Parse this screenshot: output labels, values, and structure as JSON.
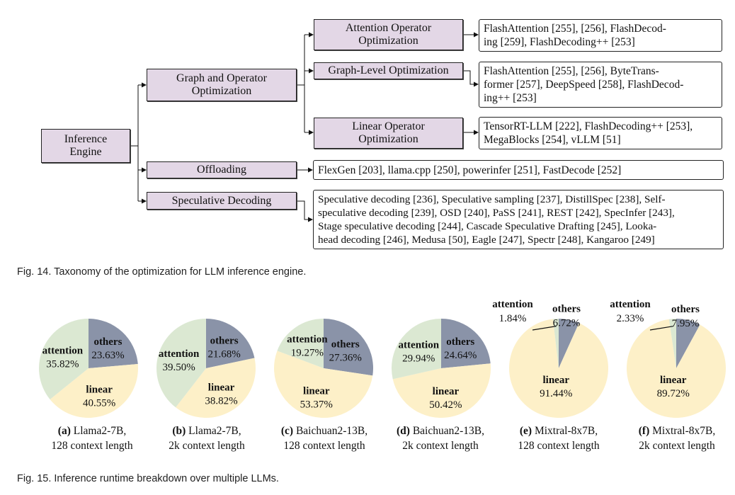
{
  "taxonomy": {
    "root": "Inference Engine",
    "branches": [
      {
        "label": "Graph and Operator Optimization"
      },
      {
        "label": "Offloading"
      },
      {
        "label": "Speculative Decoding"
      }
    ],
    "sub_branches": [
      {
        "label": "Attention Operator Optimization"
      },
      {
        "label": "Graph-Level Optimization"
      },
      {
        "label": "Linear Operator Optimization"
      }
    ],
    "leaves": {
      "attention_op": [
        "FlashAttention [255], [256], FlashDecod-",
        "ing [259], FlashDecoding++ [253]"
      ],
      "graph_level": [
        "FlashAttention [255], [256], ByteTrans-",
        "former [257], DeepSpeed [258], FlashDecod-",
        "ing++ [253]"
      ],
      "linear_op": [
        "TensorRT-LLM [222], FlashDecoding++ [253],",
        "MegaBlocks [254], vLLM [51]"
      ],
      "offloading": [
        "FlexGen [203], llama.cpp [250], powerinfer [251], FastDecode [252]"
      ],
      "speculative": [
        "Speculative decoding [236], Speculative sampling [237], DistillSpec [238], Self-",
        "speculative decoding [239], OSD [240], PaSS [241], REST [242], SpecInfer [243],",
        "Stage speculative decoding [244], Cascade Speculative Drafting [245], Looka-",
        "head decoding [246], Medusa [50], Eagle [247], Spectr [248], Kangaroo [249]"
      ]
    }
  },
  "fig14_caption": "Fig. 14. Taxonomy of the optimization for LLM inference engine.",
  "fig15_caption": "Fig. 15. Inference runtime breakdown over multiple LLMs.",
  "colors": {
    "others": "#8a93a8",
    "linear": "#fdf0c8",
    "attention": "#dbe8d2",
    "node_fill": "#e3d7e6"
  },
  "chart_data": [
    {
      "type": "pie",
      "caption_tag": "(a)",
      "caption_line1": "Llama2-7B,",
      "caption_line2": "128 context length",
      "slices": [
        {
          "name": "others",
          "value": 23.63,
          "label": "23.63%"
        },
        {
          "name": "linear",
          "value": 40.55,
          "label": "40.55%"
        },
        {
          "name": "attention",
          "value": 35.82,
          "label": "35.82%"
        }
      ]
    },
    {
      "type": "pie",
      "caption_tag": "(b)",
      "caption_line1": "Llama2-7B,",
      "caption_line2": "2k context length",
      "slices": [
        {
          "name": "others",
          "value": 21.68,
          "label": "21.68%"
        },
        {
          "name": "linear",
          "value": 38.82,
          "label": "38.82%"
        },
        {
          "name": "attention",
          "value": 39.5,
          "label": "39.50%"
        }
      ]
    },
    {
      "type": "pie",
      "caption_tag": "(c)",
      "caption_line1": "Baichuan2-13B,",
      "caption_line2": "128 context length",
      "slices": [
        {
          "name": "others",
          "value": 27.36,
          "label": "27.36%"
        },
        {
          "name": "linear",
          "value": 53.37,
          "label": "53.37%"
        },
        {
          "name": "attention",
          "value": 19.27,
          "label": "19.27%"
        }
      ]
    },
    {
      "type": "pie",
      "caption_tag": "(d)",
      "caption_line1": "Baichuan2-13B,",
      "caption_line2": "2k context length",
      "slices": [
        {
          "name": "others",
          "value": 24.64,
          "label": "24.64%"
        },
        {
          "name": "linear",
          "value": 50.42,
          "label": "50.42%"
        },
        {
          "name": "attention",
          "value": 29.94,
          "label": "29.94%"
        }
      ]
    },
    {
      "type": "pie",
      "caption_tag": "(e)",
      "caption_line1": "Mixtral-8x7B,",
      "caption_line2": "128 context length",
      "slices": [
        {
          "name": "others",
          "value": 6.72,
          "label": "6.72%"
        },
        {
          "name": "linear",
          "value": 91.44,
          "label": "91.44%"
        },
        {
          "name": "attention",
          "value": 1.84,
          "label": "1.84%"
        }
      ]
    },
    {
      "type": "pie",
      "caption_tag": "(f)",
      "caption_line1": "Mixtral-8x7B,",
      "caption_line2": "2k context length",
      "slices": [
        {
          "name": "others",
          "value": 7.95,
          "label": "7.95%"
        },
        {
          "name": "linear",
          "value": 89.72,
          "label": "89.72%"
        },
        {
          "name": "attention",
          "value": 2.33,
          "label": "2.33%"
        }
      ]
    }
  ]
}
